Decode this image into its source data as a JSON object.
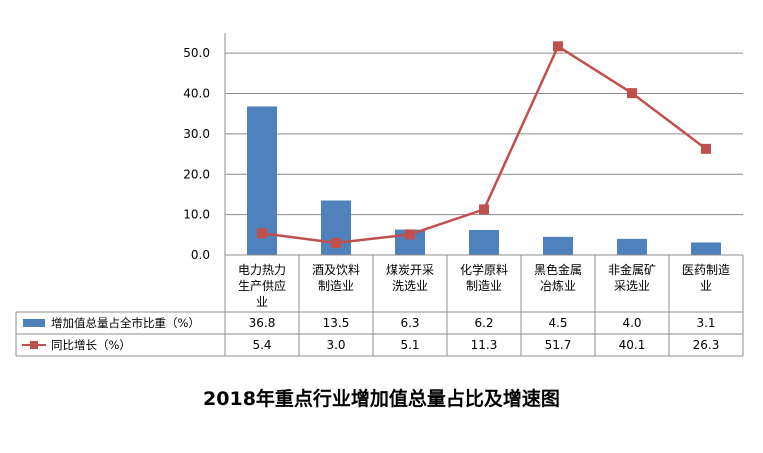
{
  "chart_data": {
    "type": "bar+line",
    "title": "2018年重点行业增加值总量占比及增速图",
    "categories": [
      [
        "电力热力",
        "生产供应",
        "业"
      ],
      [
        "酒及饮料",
        "制造业"
      ],
      [
        "煤炭开采",
        "洗选业"
      ],
      [
        "化学原料",
        "制造业"
      ],
      [
        "黑色金属",
        "冶炼业"
      ],
      [
        "非金属矿",
        "采选业"
      ],
      [
        "医药制造",
        "业"
      ]
    ],
    "ylim": [
      0,
      55
    ],
    "y_ticks": [
      0,
      10,
      20,
      30,
      40,
      50
    ],
    "y_tick_labels": [
      "0.0",
      "10.0",
      "20.0",
      "30.0",
      "40.0",
      "50.0"
    ],
    "grid": true,
    "legend": "bottom-left data table",
    "series": [
      {
        "name": "增加值总量占全市比重（%）",
        "type": "bar",
        "color": "#4f81bd",
        "values": [
          36.8,
          13.5,
          6.3,
          6.2,
          4.5,
          4.0,
          3.1
        ],
        "labels": [
          "36.8",
          "13.5",
          "6.3",
          "6.2",
          "4.5",
          "4.0",
          "3.1"
        ]
      },
      {
        "name": "同比增长（%）",
        "type": "line",
        "color": "#c0504d",
        "values": [
          5.4,
          3.0,
          5.1,
          11.3,
          51.7,
          40.1,
          26.3
        ],
        "labels": [
          "5.4",
          "3.0",
          "5.1",
          "11.3",
          "51.7",
          "40.1",
          "26.3"
        ]
      }
    ]
  }
}
